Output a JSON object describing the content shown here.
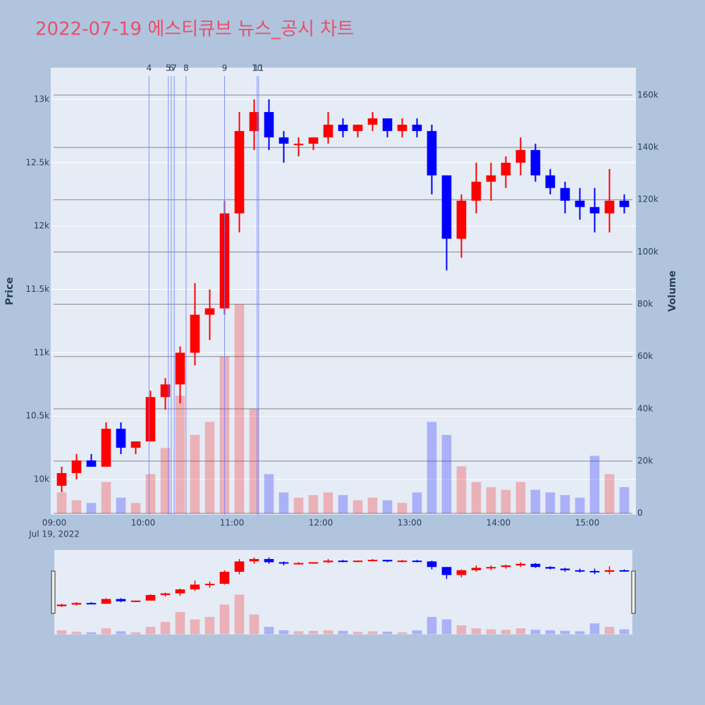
{
  "chart_data": {
    "type": "candlestick",
    "title": "2022-07-19 에스티큐브 뉴스_공시 차트",
    "y_title": "Price",
    "y2_title": "Volume",
    "x": [
      "09:00",
      "09:10",
      "09:20",
      "09:30",
      "09:40",
      "09:50",
      "10:00",
      "10:10",
      "10:20",
      "10:30",
      "10:40",
      "10:50",
      "11:00",
      "11:10",
      "11:20",
      "11:30",
      "11:40",
      "11:50",
      "12:00",
      "12:10",
      "12:20",
      "12:30",
      "12:40",
      "12:50",
      "13:00",
      "13:10",
      "13:20",
      "13:30",
      "13:40",
      "13:50",
      "14:00",
      "14:10",
      "14:20",
      "14:30",
      "14:40",
      "14:50",
      "15:00",
      "15:10",
      "15:20"
    ],
    "open": [
      9950,
      10050,
      10150,
      10100,
      10400,
      10250,
      10300,
      10650,
      10750,
      11000,
      11300,
      11350,
      12100,
      12750,
      12900,
      12700,
      12650,
      12650,
      12700,
      12800,
      12750,
      12800,
      12850,
      12750,
      12800,
      12750,
      12400,
      11900,
      12200,
      12350,
      12400,
      12500,
      12600,
      12400,
      12300,
      12200,
      12150,
      12100,
      12200
    ],
    "high": [
      10100,
      10200,
      10200,
      10450,
      10450,
      10300,
      10700,
      10800,
      11050,
      11550,
      11500,
      12200,
      12900,
      13000,
      13000,
      12750,
      12700,
      12700,
      12900,
      12850,
      12800,
      12900,
      12850,
      12850,
      12850,
      12800,
      12400,
      12250,
      12500,
      12500,
      12550,
      12700,
      12650,
      12450,
      12350,
      12300,
      12300,
      12450,
      12250
    ],
    "low": [
      9900,
      10000,
      10100,
      10100,
      10200,
      10200,
      10300,
      10550,
      10600,
      10900,
      11100,
      11300,
      11950,
      12600,
      12600,
      12500,
      12550,
      12600,
      12650,
      12700,
      12700,
      12750,
      12700,
      12700,
      12700,
      12250,
      11650,
      11750,
      12100,
      12200,
      12300,
      12400,
      12350,
      12250,
      12100,
      12050,
      11950,
      11950,
      12100
    ],
    "close": [
      10050,
      10150,
      10100,
      10400,
      10250,
      10300,
      10650,
      10750,
      11000,
      11300,
      11350,
      12100,
      12750,
      12900,
      12700,
      12650,
      12650,
      12700,
      12800,
      12750,
      12800,
      12850,
      12750,
      12800,
      12750,
      12400,
      11900,
      12200,
      12350,
      12400,
      12500,
      12600,
      12400,
      12300,
      12200,
      12150,
      12100,
      12200,
      12150
    ],
    "volume": [
      8000,
      5000,
      4000,
      12000,
      6000,
      4000,
      15000,
      25000,
      45000,
      30000,
      35000,
      60000,
      80000,
      40000,
      15000,
      8000,
      6000,
      7000,
      8000,
      7000,
      5000,
      6000,
      5000,
      4000,
      8000,
      35000,
      30000,
      18000,
      12000,
      10000,
      9000,
      12000,
      9000,
      8000,
      7000,
      6000,
      22000,
      15000,
      10000
    ],
    "increasing_color": "#ff0000",
    "decreasing_color": "#0000ff",
    "xlim": [
      "09:00",
      "15:30"
    ],
    "xticks": [
      "09:00",
      "10:00",
      "11:00",
      "12:00",
      "13:00",
      "14:00",
      "15:00"
    ],
    "date_label": "Jul 19, 2022",
    "ylim": [
      9722,
      13250
    ],
    "yticks": [
      {
        "value": 10000,
        "label": "10k"
      },
      {
        "value": 10500,
        "label": "10.5k"
      },
      {
        "value": 11000,
        "label": "11k"
      },
      {
        "value": 11500,
        "label": "11.5k"
      },
      {
        "value": 12000,
        "label": "12k"
      },
      {
        "value": 12500,
        "label": "12.5k"
      },
      {
        "value": 13000,
        "label": "13k"
      }
    ],
    "y2lim": [
      -500,
      170500
    ],
    "y2ticks": [
      0,
      {
        "value": 20000,
        "label": "20k"
      },
      {
        "value": 40000,
        "label": "40k"
      },
      {
        "value": 60000,
        "label": "60k"
      },
      {
        "value": 80000,
        "label": "80k"
      },
      {
        "value": 100000,
        "label": "100k"
      },
      {
        "value": 120000,
        "label": "120k"
      },
      {
        "value": 140000,
        "label": "140k"
      },
      {
        "value": 160000,
        "label": "160k"
      }
    ],
    "news": [
      {
        "label": "4",
        "x": "10:04"
      },
      {
        "label": "5",
        "x": "10:17"
      },
      {
        "label": "6",
        "x": "10:19"
      },
      {
        "label": "7",
        "x": "10:21"
      },
      {
        "label": "8",
        "x": "10:29"
      },
      {
        "label": "9",
        "x": "10:55"
      },
      {
        "label": "10",
        "x": "11:17"
      },
      {
        "label": "11",
        "x": "11:18"
      }
    ]
  }
}
